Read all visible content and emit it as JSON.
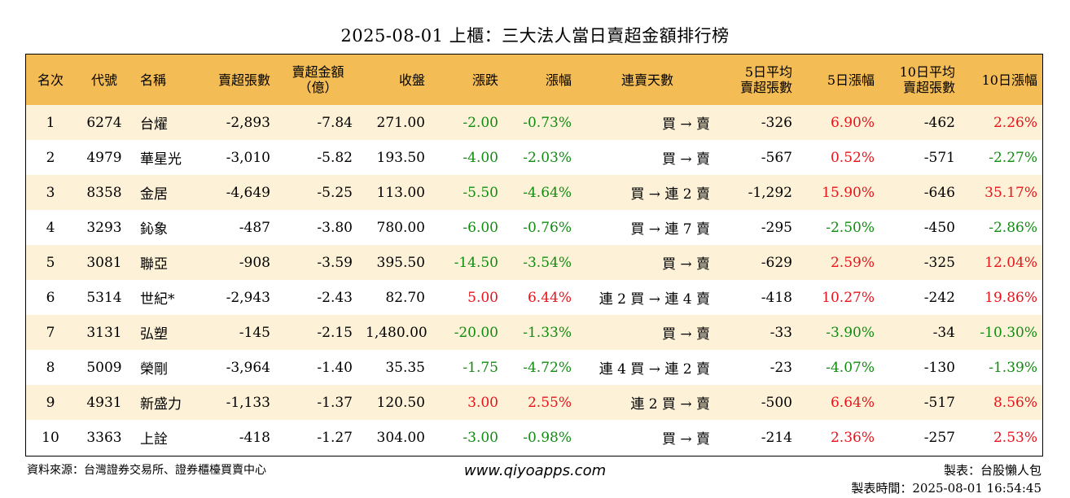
{
  "title": "2025-08-01 上櫃：三大法人當日賣超金額排行榜",
  "colors": {
    "header_bg": "#f4bc55",
    "row_alt_bg": "#fdf2d7",
    "up": "#e8131b",
    "down": "#118c11"
  },
  "headers": [
    {
      "l1": "名次",
      "l2": ""
    },
    {
      "l1": "代號",
      "l2": ""
    },
    {
      "l1": "名稱",
      "l2": ""
    },
    {
      "l1": "賣超張數",
      "l2": ""
    },
    {
      "l1": "賣超金額",
      "l2": "（億）"
    },
    {
      "l1": "收盤",
      "l2": ""
    },
    {
      "l1": "漲跌",
      "l2": ""
    },
    {
      "l1": "漲幅",
      "l2": ""
    },
    {
      "l1": "連賣天數",
      "l2": ""
    },
    {
      "l1": "5日平均",
      "l2": "賣超張數"
    },
    {
      "l1": "5日漲幅",
      "l2": ""
    },
    {
      "l1": "10日平均",
      "l2": "賣超張數"
    },
    {
      "l1": "10日漲幅",
      "l2": ""
    }
  ],
  "rows": [
    {
      "rank": "1",
      "code": "6274",
      "name": "台燿",
      "shares": "-2,893",
      "amount": "-7.84",
      "close": "271.00",
      "change": "-2.00",
      "pct": "-0.73%",
      "streak": "買 → 賣",
      "avg5": "-326",
      "pct5": "6.90%",
      "avg10": "-462",
      "pct10": "2.26%"
    },
    {
      "rank": "2",
      "code": "4979",
      "name": "華星光",
      "shares": "-3,010",
      "amount": "-5.82",
      "close": "193.50",
      "change": "-4.00",
      "pct": "-2.03%",
      "streak": "買 → 賣",
      "avg5": "-567",
      "pct5": "0.52%",
      "avg10": "-571",
      "pct10": "-2.27%"
    },
    {
      "rank": "3",
      "code": "8358",
      "name": "金居",
      "shares": "-4,649",
      "amount": "-5.25",
      "close": "113.00",
      "change": "-5.50",
      "pct": "-4.64%",
      "streak": "買 → 連 2 賣",
      "avg5": "-1,292",
      "pct5": "15.90%",
      "avg10": "-646",
      "pct10": "35.17%"
    },
    {
      "rank": "4",
      "code": "3293",
      "name": "鈊象",
      "shares": "-487",
      "amount": "-3.80",
      "close": "780.00",
      "change": "-6.00",
      "pct": "-0.76%",
      "streak": "買 → 連 7 賣",
      "avg5": "-295",
      "pct5": "-2.50%",
      "avg10": "-450",
      "pct10": "-2.86%"
    },
    {
      "rank": "5",
      "code": "3081",
      "name": "聯亞",
      "shares": "-908",
      "amount": "-3.59",
      "close": "395.50",
      "change": "-14.50",
      "pct": "-3.54%",
      "streak": "買 → 賣",
      "avg5": "-629",
      "pct5": "2.59%",
      "avg10": "-325",
      "pct10": "12.04%"
    },
    {
      "rank": "6",
      "code": "5314",
      "name": "世紀*",
      "shares": "-2,943",
      "amount": "-2.43",
      "close": "82.70",
      "change": "5.00",
      "pct": "6.44%",
      "streak": "連 2 買 → 連 4 賣",
      "avg5": "-418",
      "pct5": "10.27%",
      "avg10": "-242",
      "pct10": "19.86%"
    },
    {
      "rank": "7",
      "code": "3131",
      "name": "弘塑",
      "shares": "-145",
      "amount": "-2.15",
      "close": "1,480.00",
      "change": "-20.00",
      "pct": "-1.33%",
      "streak": "買 → 賣",
      "avg5": "-33",
      "pct5": "-3.90%",
      "avg10": "-34",
      "pct10": "-10.30%"
    },
    {
      "rank": "8",
      "code": "5009",
      "name": "榮剛",
      "shares": "-3,964",
      "amount": "-1.40",
      "close": "35.35",
      "change": "-1.75",
      "pct": "-4.72%",
      "streak": "連 4 買 → 連 2 賣",
      "avg5": "-23",
      "pct5": "-4.07%",
      "avg10": "-130",
      "pct10": "-1.39%"
    },
    {
      "rank": "9",
      "code": "4931",
      "name": "新盛力",
      "shares": "-1,133",
      "amount": "-1.37",
      "close": "120.50",
      "change": "3.00",
      "pct": "2.55%",
      "streak": "連 2 買 → 賣",
      "avg5": "-500",
      "pct5": "6.64%",
      "avg10": "-517",
      "pct10": "8.56%"
    },
    {
      "rank": "10",
      "code": "3363",
      "name": "上詮",
      "shares": "-418",
      "amount": "-1.27",
      "close": "304.00",
      "change": "-3.00",
      "pct": "-0.98%",
      "streak": "買 → 賣",
      "avg5": "-214",
      "pct5": "2.36%",
      "avg10": "-257",
      "pct10": "2.53%"
    }
  ],
  "footer": {
    "source": "資料來源：台灣證券交易所、證券櫃檯買賣中心",
    "website": "www.qiyoapps.com",
    "maker": "製表：台股懶人包",
    "timestamp": "製表時間：2025-08-01 16:54:45"
  }
}
